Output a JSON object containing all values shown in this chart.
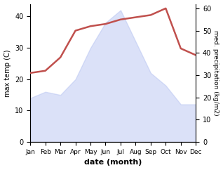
{
  "months": [
    "Jan",
    "Feb",
    "Mar",
    "Apr",
    "May",
    "Jun",
    "Jul",
    "Aug",
    "Sep",
    "Oct",
    "Nov",
    "Dec"
  ],
  "precipitation": [
    14,
    16,
    15,
    20,
    30,
    38,
    42,
    32,
    22,
    18,
    12,
    12
  ],
  "temperature": [
    31,
    32,
    38,
    50,
    52,
    53,
    55,
    56,
    57,
    60,
    42,
    39
  ],
  "precip_color": "#b0bef0",
  "temp_color": "#c0504d",
  "left_ylim": [
    0,
    44
  ],
  "right_ylim": [
    0,
    62
  ],
  "xlabel": "date (month)",
  "ylabel_left": "max temp (C)",
  "ylabel_right": "med. precipitation (kg/m2)",
  "left_yticks": [
    0,
    10,
    20,
    30,
    40
  ],
  "right_yticks": [
    0,
    10,
    20,
    30,
    40,
    50,
    60
  ],
  "bg_color": "#ffffff",
  "fill_alpha": 0.45
}
